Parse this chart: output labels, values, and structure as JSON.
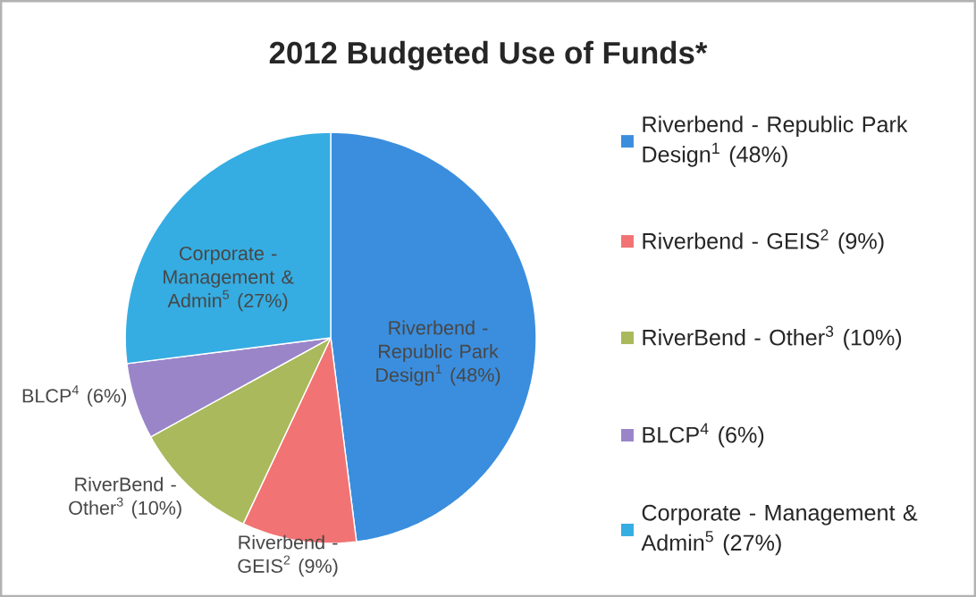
{
  "chart_data": {
    "type": "pie",
    "title": "2012 Budgeted Use of Funds*",
    "categories": [
      "Riverbend - Republic Park Design$^{1}$ (48%)",
      "Riverbend - GEIS$^{2}$ (9%)",
      "RiverBend - Other$^{3}$ (10%)",
      "BLCP$^{4}$ (6%)",
      "Corporate - Management & Admin$^{5}$ (27%)"
    ],
    "values": [
      48,
      9,
      10,
      6,
      27
    ],
    "colors": [
      "#3b8ede",
      "#f27373",
      "#a9b95c",
      "#9a85c9",
      "#35ade2"
    ],
    "legend": "right"
  }
}
